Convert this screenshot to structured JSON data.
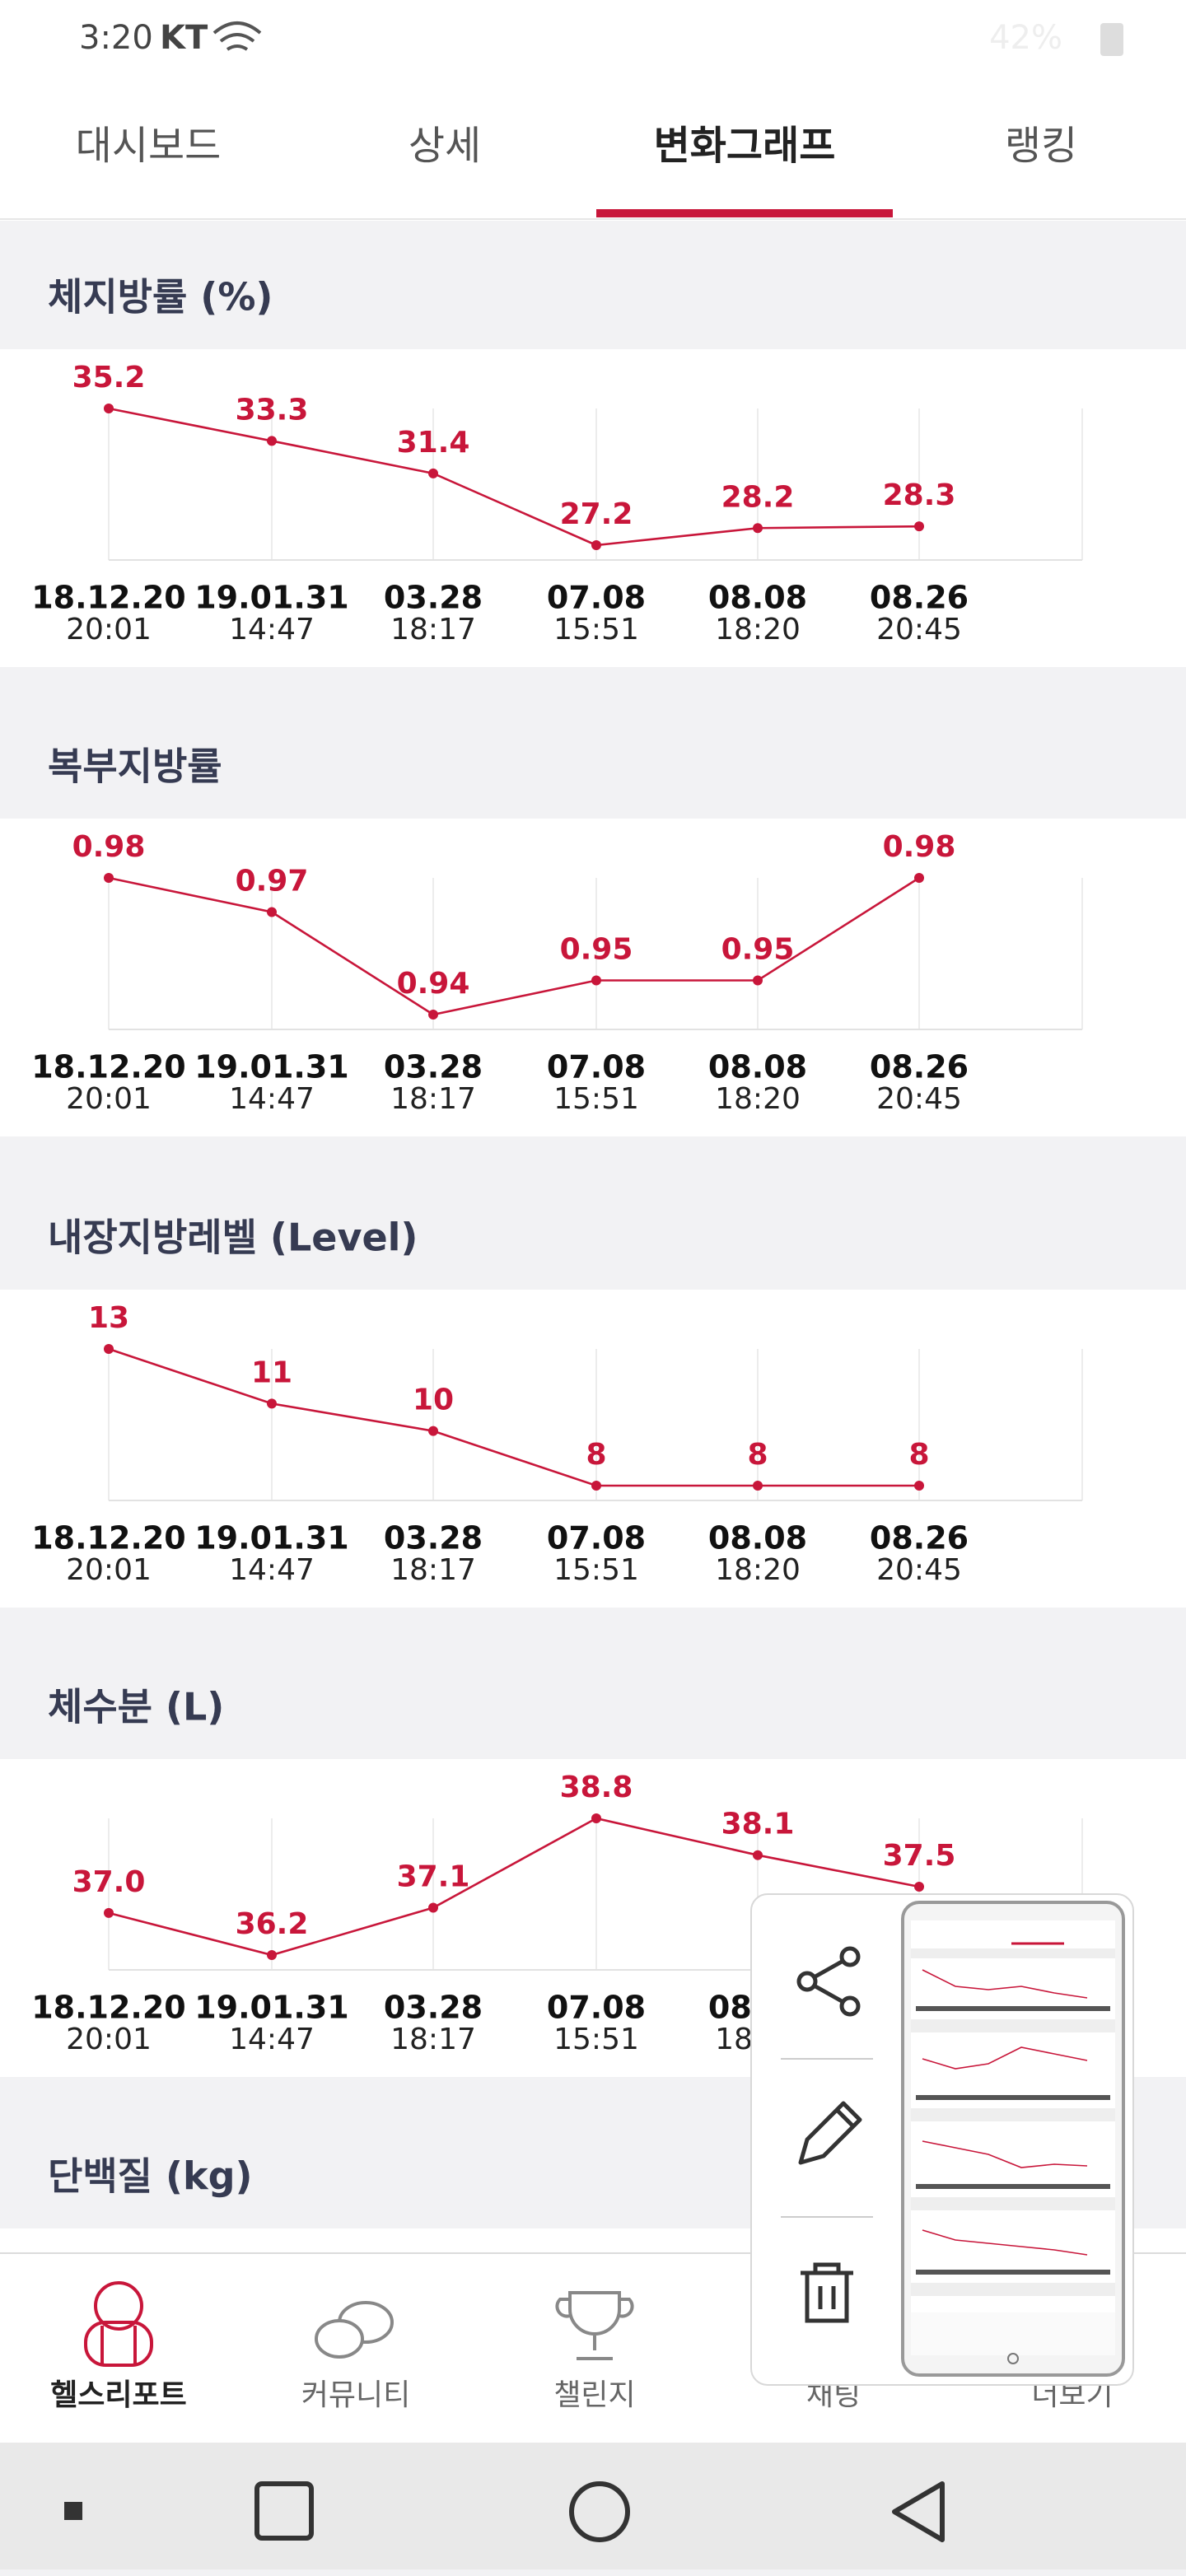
{
  "status": {
    "time": "3:20",
    "carrier": "KT",
    "battery": "42%"
  },
  "tabs": [
    "대시보드",
    "상세",
    "변화그래프",
    "랭킹"
  ],
  "active_tab": 2,
  "dates": [
    "18.12.20",
    "19.01.31",
    "03.28",
    "07.08",
    "08.08",
    "08.26"
  ],
  "times": [
    "20:01",
    "14:47",
    "18:17",
    "15:51",
    "18:20",
    "20:45"
  ],
  "color": "#c8163a",
  "sections": [
    {
      "title": "체지방률 (%)",
      "values": [
        35.2,
        33.3,
        31.4,
        27.2,
        28.2,
        28.3
      ]
    },
    {
      "title": "복부지방률",
      "values": [
        0.98,
        0.97,
        0.94,
        0.95,
        0.95,
        0.98
      ]
    },
    {
      "title": "내장지방레벨 (Level)",
      "values": [
        13,
        11,
        10,
        8,
        8,
        8
      ]
    },
    {
      "title": "체수분 (L)",
      "values": [
        37.0,
        36.2,
        37.1,
        38.8,
        38.1,
        37.5
      ],
      "value_labels": [
        "37.0",
        "36.2",
        "37.1",
        "38.8",
        "38.1",
        "37.5"
      ]
    }
  ],
  "partial_section": {
    "title": "단백질 (kg)"
  },
  "nav": [
    "헬스리포트",
    "커뮤니티",
    "챌린지",
    "채팅",
    "더보기"
  ],
  "active_nav": 0
}
